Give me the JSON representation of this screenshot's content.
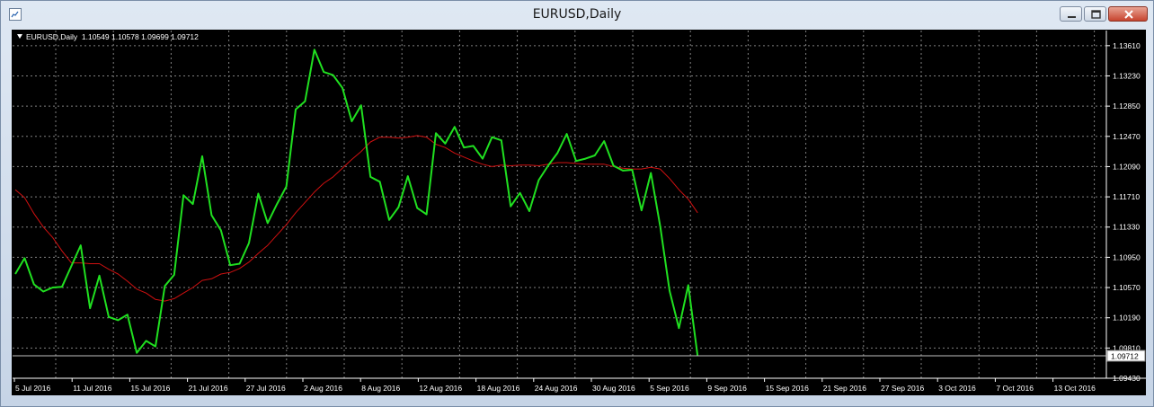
{
  "window": {
    "title": "EURUSD,Daily"
  },
  "legend": {
    "symbol": "EURUSD,Daily",
    "ohlc": "1.10549 1.10578 1.09699 1.09712"
  },
  "price_box": "1.09712",
  "colors": {
    "background": "#000000",
    "grid": "#7f7f7f",
    "price_line": "#20e020",
    "ma_line": "#d01010",
    "axis_text": "#ffffff"
  },
  "chart_data": {
    "type": "line",
    "ylim": [
      1.0943,
      1.138
    ],
    "y_ticks": [
      "1.13610",
      "1.13230",
      "1.12850",
      "1.12470",
      "1.12090",
      "1.11710",
      "1.11330",
      "1.10950",
      "1.10570",
      "1.10190",
      "1.09810",
      "1.09430"
    ],
    "x_tick_labels": [
      "5 Jul 2016",
      "11 Jul 2016",
      "15 Jul 2016",
      "21 Jul 2016",
      "27 Jul 2016",
      "2 Aug 2016",
      "8 Aug 2016",
      "12 Aug 2016",
      "18 Aug 2016",
      "24 Aug 2016",
      "30 Aug 2016",
      "5 Sep 2016",
      "9 Sep 2016",
      "15 Sep 2016",
      "21 Sep 2016",
      "27 Sep 2016",
      "3 Oct 2016",
      "7 Oct 2016",
      "13 Oct 2016"
    ],
    "current_price": 1.09712,
    "grid": true,
    "series": [
      {
        "values": [
          1.1074,
          1.1094,
          1.1061,
          1.1052,
          1.1057,
          1.1058,
          1.1084,
          1.111,
          1.1031,
          1.1072,
          1.102,
          1.1016,
          1.1023,
          1.0975,
          1.099,
          1.0983,
          1.1059,
          1.1073,
          1.1173,
          1.1162,
          1.1222,
          1.1148,
          1.1129,
          1.1085,
          1.1087,
          1.1113,
          1.1175,
          1.1138,
          1.1162,
          1.1184,
          1.1281,
          1.1291,
          1.1356,
          1.1328,
          1.1324,
          1.1308,
          1.1266,
          1.1286,
          1.1196,
          1.119,
          1.1142,
          1.1158,
          1.1197,
          1.1157,
          1.1149,
          1.1251,
          1.1238,
          1.1259,
          1.1233,
          1.1235,
          1.1219,
          1.1246,
          1.1242,
          1.1159,
          1.1176,
          1.1153,
          1.1192,
          1.121,
          1.1226,
          1.125,
          1.1216,
          1.1219,
          1.1223,
          1.1241,
          1.121,
          1.1204,
          1.1205,
          1.1154,
          1.1201,
          1.1134,
          1.1053,
          1.1006,
          1.106,
          1.0971
        ]
      },
      {
        "values": [
          1.118,
          1.117,
          1.115,
          1.1133,
          1.112,
          1.1103,
          1.1088,
          1.1088,
          1.1087,
          1.1087,
          1.108,
          1.1074,
          1.1065,
          1.1055,
          1.105,
          1.1042,
          1.104,
          1.1043,
          1.105,
          1.1057,
          1.1066,
          1.1068,
          1.1074,
          1.1076,
          1.1081,
          1.1089,
          1.11,
          1.111,
          1.1123,
          1.1136,
          1.1151,
          1.1164,
          1.1177,
          1.1188,
          1.1196,
          1.1207,
          1.1218,
          1.1228,
          1.124,
          1.1246,
          1.1246,
          1.1245,
          1.1246,
          1.1248,
          1.1246,
          1.1237,
          1.1233,
          1.1226,
          1.1221,
          1.1216,
          1.1212,
          1.1209,
          1.1211,
          1.121,
          1.1211,
          1.1211,
          1.121,
          1.1212,
          1.1214,
          1.1214,
          1.1213,
          1.1212,
          1.1212,
          1.1212,
          1.1209,
          1.1207,
          1.1206,
          1.1206,
          1.1208,
          1.1206,
          1.1194,
          1.118,
          1.1168,
          1.1151
        ]
      }
    ]
  }
}
